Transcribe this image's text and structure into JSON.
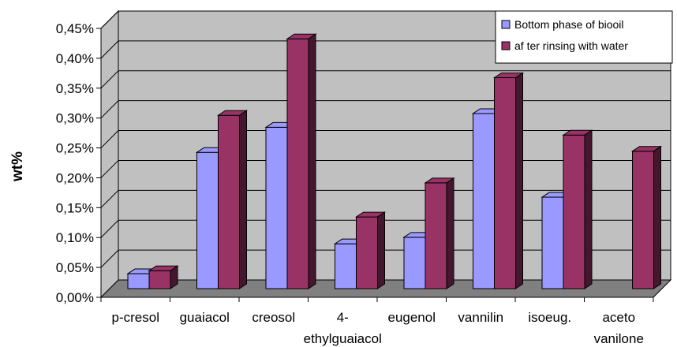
{
  "chart_data": {
    "type": "bar",
    "title": "",
    "xlabel": "",
    "ylabel": "wt%",
    "ylim": [
      0,
      0.45
    ],
    "yticks": [
      "0,00%",
      "0,05%",
      "0,10%",
      "0,15%",
      "0,20%",
      "0,25%",
      "0,30%",
      "0,35%",
      "0,40%",
      "0,45%"
    ],
    "categories": [
      [
        "p-cresol"
      ],
      [
        "guaiacol"
      ],
      [
        "creosol"
      ],
      [
        "4-",
        "ethylguaiacol"
      ],
      [
        "eugenol"
      ],
      [
        "vannilin"
      ],
      [
        "isoeug."
      ],
      [
        "aceto",
        "vanilone"
      ]
    ],
    "series": [
      {
        "name": "Bottom phase of biooil",
        "color": "#9999ff",
        "values": [
          0.025,
          0.228,
          0.27,
          0.075,
          0.086,
          0.293,
          0.153,
          0
        ]
      },
      {
        "name": "af ter rinsing with water",
        "color": "#993366",
        "values": [
          0.03,
          0.29,
          0.418,
          0.12,
          0.177,
          0.353,
          0.257,
          0.23
        ]
      }
    ],
    "grid": true,
    "legend_position": "top-right",
    "style": "3d-clustered",
    "colors": {
      "back_wall": "#c0c0c0",
      "floor": "#808080",
      "gridline": "#000000"
    }
  }
}
